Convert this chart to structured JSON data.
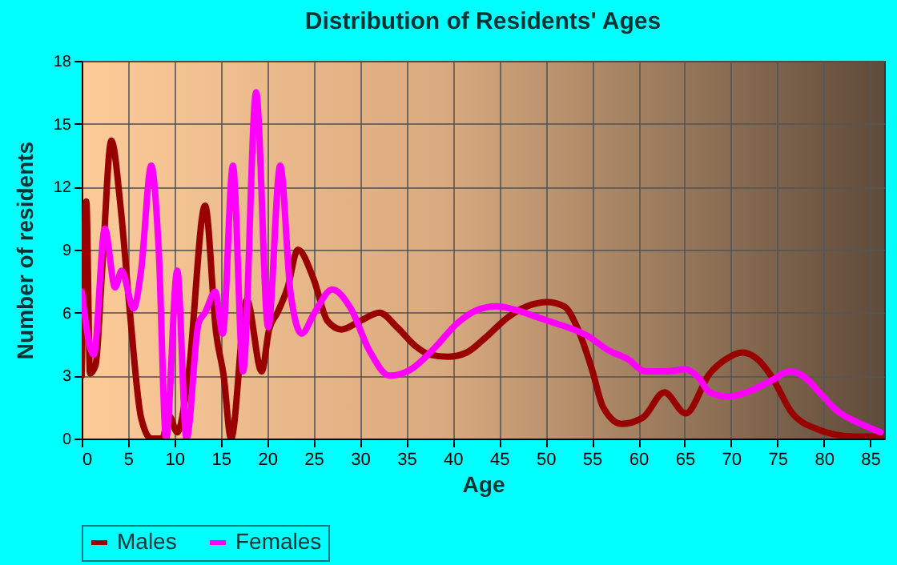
{
  "chart_data": {
    "type": "line",
    "title": "Distribution of Residents' Ages",
    "xlabel": "Age",
    "ylabel": "Number of residents",
    "xlim": [
      0,
      86.5
    ],
    "xticks": [
      0,
      5,
      10,
      15,
      20,
      25,
      30,
      35,
      40,
      45,
      50,
      55,
      60,
      65,
      70,
      75,
      80,
      85
    ],
    "ylim": [
      0,
      18
    ],
    "yticks": [
      0,
      3,
      6,
      9,
      12,
      15,
      18
    ],
    "grid": true,
    "legend": "bottom",
    "series": [
      {
        "name": "Males",
        "color": "#990000",
        "x": [
          0,
          0.5,
          0.9,
          1.5,
          2.2,
          3.2,
          4.2,
          5.2,
          6.4,
          7.5,
          8.7,
          9.4,
          10.3,
          11.5,
          13.3,
          14.5,
          15.3,
          16.1,
          17.8,
          19.4,
          20.2,
          21.1,
          22.2,
          23.3,
          25,
          26.5,
          28,
          30,
          32.1,
          34,
          36,
          37.5,
          39.5,
          41.5,
          43.5,
          46,
          48,
          50.2,
          52,
          53.5,
          55,
          56.2,
          58.2,
          60.5,
          62.8,
          65.1,
          67.7,
          69.5,
          71.2,
          72.8,
          74.3,
          76.6,
          79,
          83.2,
          86.5
        ],
        "values": [
          3,
          11.3,
          3.1,
          3.5,
          8,
          14.2,
          11,
          6,
          1,
          0,
          0,
          1.1,
          0.3,
          3,
          11.1,
          5,
          3,
          0,
          6.6,
          3.2,
          5.2,
          6,
          7.2,
          9,
          7.6,
          5.6,
          5.2,
          5.6,
          6,
          5.3,
          4.4,
          4,
          3.9,
          4.1,
          4.8,
          5.8,
          6.3,
          6.5,
          6.3,
          5.2,
          3.3,
          1.5,
          0.7,
          1,
          2.2,
          1.2,
          3.1,
          3.8,
          4.1,
          3.8,
          3,
          1.2,
          0.5,
          0.1,
          0.1
        ]
      },
      {
        "name": "Females",
        "color": "#ff00ff",
        "x": [
          0,
          1.3,
          2.5,
          3.6,
          4.3,
          5.6,
          6.4,
          7.5,
          8.3,
          9.1,
          10.3,
          11.3,
          12.6,
          13.3,
          14.4,
          15.2,
          16.3,
          17.4,
          18.8,
          20.1,
          21.4,
          22.5,
          23.7,
          25.1,
          27,
          29,
          31,
          33.2,
          35.5,
          38,
          40.5,
          42.5,
          44.7,
          47,
          49,
          51,
          53,
          54.5,
          56.8,
          58.8,
          60.8,
          63,
          65.1,
          66.5,
          67.7,
          69.7,
          72.2,
          74.5,
          76.3,
          78,
          79.5,
          81.5,
          84,
          86.1
        ],
        "values": [
          7,
          4,
          10,
          7.2,
          8,
          6.2,
          8,
          13,
          9,
          0,
          8,
          0,
          5.5,
          6,
          7,
          5,
          13,
          3.2,
          16.5,
          5.3,
          13,
          7,
          5,
          6,
          7.1,
          6.2,
          4.2,
          3,
          3.3,
          4.3,
          5.5,
          6.1,
          6.3,
          6.1,
          5.8,
          5.5,
          5.2,
          4.9,
          4.2,
          3.8,
          3.2,
          3.2,
          3.3,
          2.9,
          2.2,
          2,
          2.3,
          2.8,
          3.2,
          2.9,
          2.2,
          1.3,
          0.7,
          0.3
        ]
      }
    ]
  }
}
